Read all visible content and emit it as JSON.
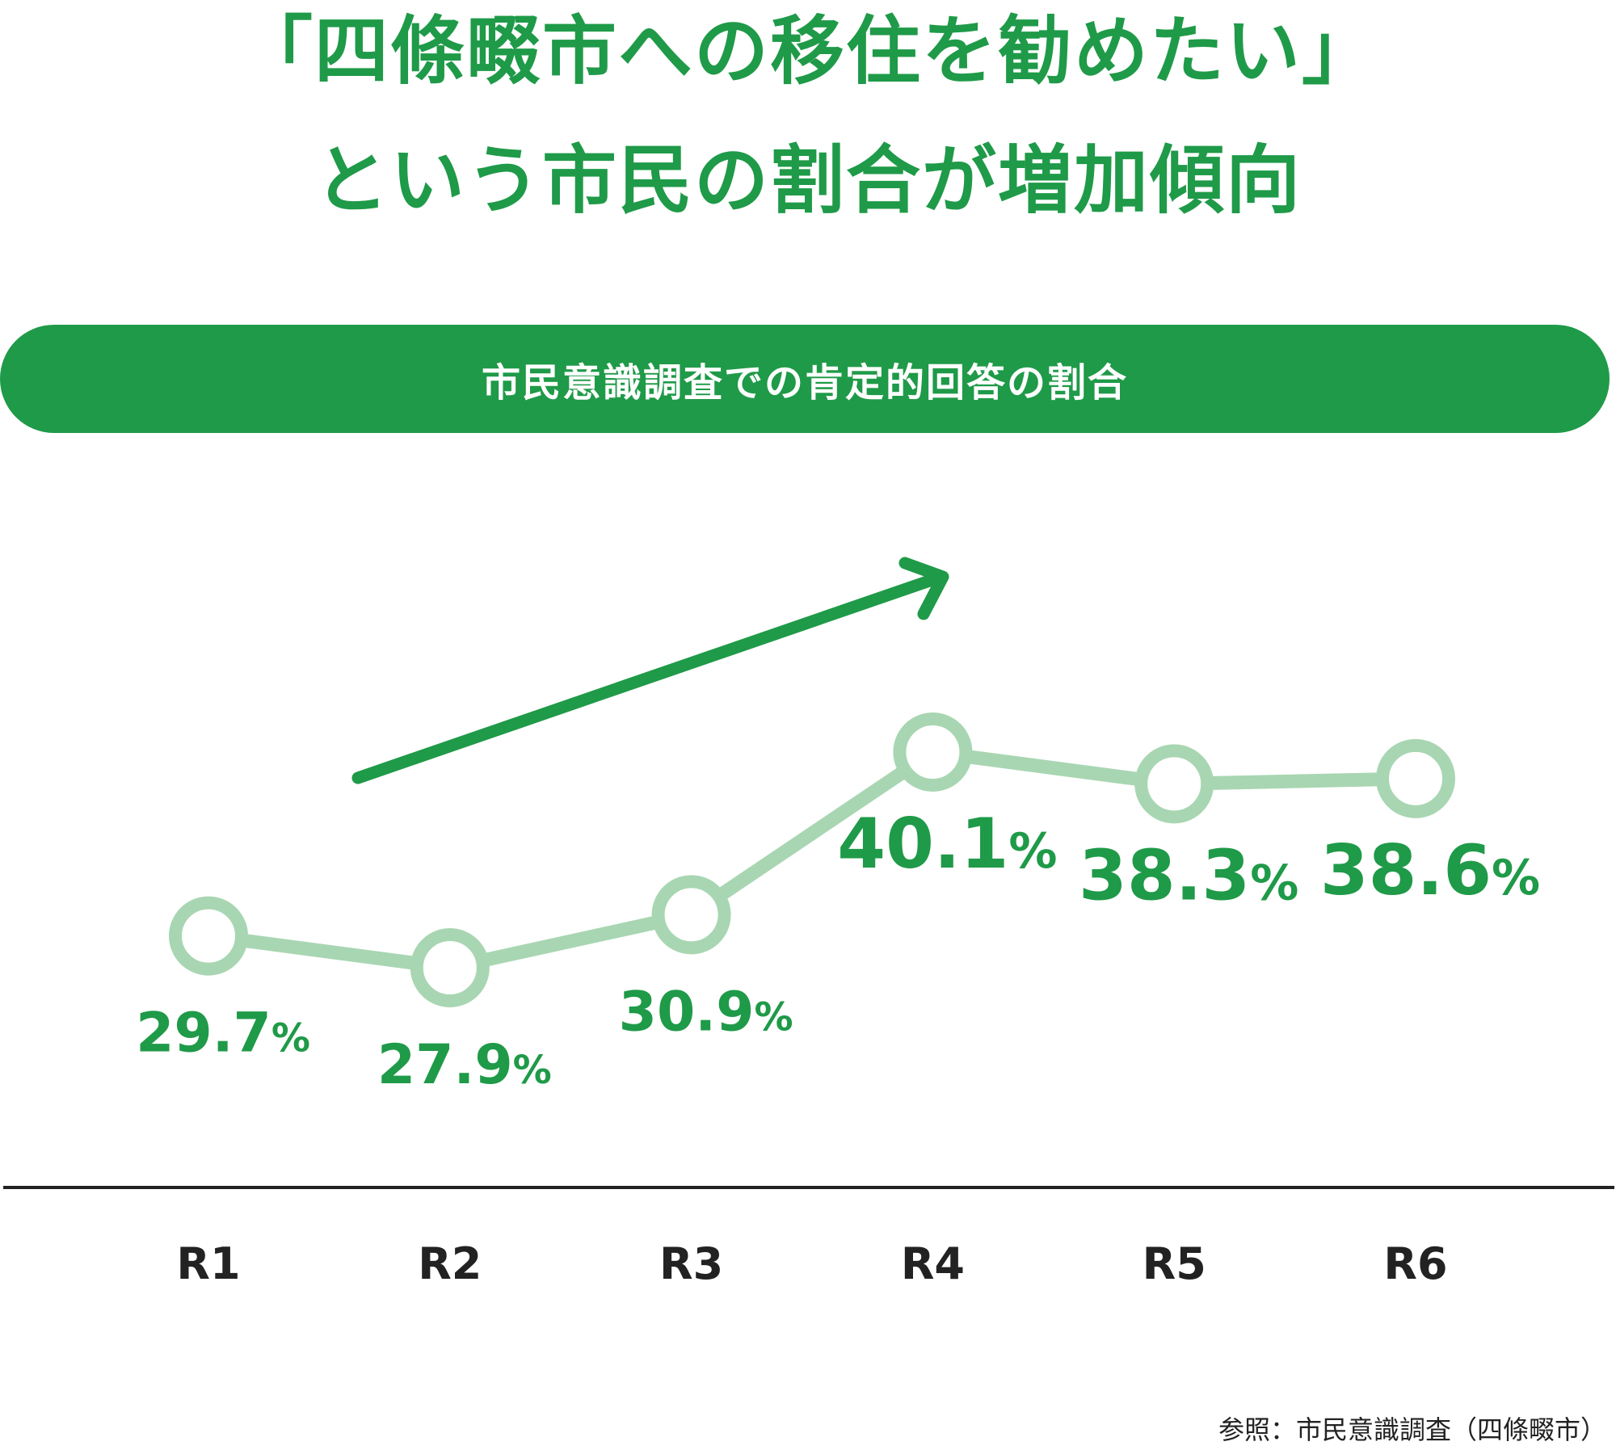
{
  "chart_data": {
    "type": "line",
    "title_lines": [
      "「四條畷市への移住を勧めたい」",
      "という市民の割合が増加傾向"
    ],
    "subtitle": "市民意識調査での肯定的回答の割合",
    "categories": [
      "R1",
      "R2",
      "R3",
      "R4",
      "R5",
      "R6"
    ],
    "values": [
      29.7,
      27.9,
      30.9,
      40.1,
      38.3,
      38.6
    ],
    "data_labels": [
      "29.7%",
      "27.9%",
      "30.9%",
      "40.1%",
      "38.3%",
      "38.6%"
    ],
    "xlabel": "",
    "ylabel": "",
    "grid": false,
    "legend": "none",
    "trend_arrow": "up",
    "source": "参照：市民意識調査（四條畷市）"
  },
  "colors": {
    "accent": "#1f9a48",
    "line": "#a8d6b2",
    "text_dark": "#222222",
    "background": "#ffffff"
  }
}
